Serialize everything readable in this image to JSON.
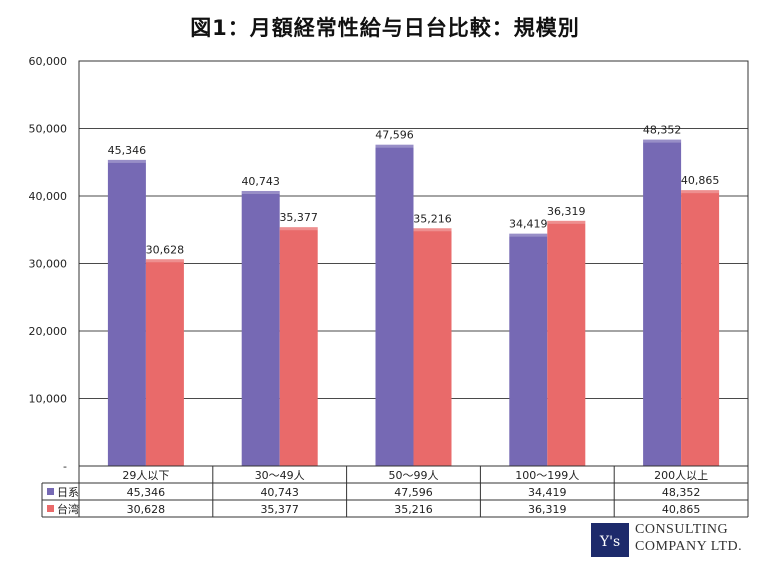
{
  "chart_data": {
    "type": "bar",
    "title": "図1：月額経常性給与日台比較：規模別",
    "categories": [
      "29人以下",
      "30〜49人",
      "50〜99人",
      "100〜199人",
      "200人以上"
    ],
    "series": [
      {
        "name": "日系",
        "color": "#7669b4",
        "values": [
          45346,
          40743,
          47596,
          34419,
          48352
        ],
        "labels": [
          "45,346",
          "40,743",
          "47,596",
          "34,419",
          "48,352"
        ]
      },
      {
        "name": "台湾",
        "color": "#e96a6a",
        "values": [
          30628,
          35377,
          35216,
          36319,
          40865
        ],
        "labels": [
          "30,628",
          "35,377",
          "35,216",
          "36,319",
          "40,865"
        ]
      }
    ],
    "ylim": [
      0,
      60000
    ],
    "yticks": [
      0,
      10000,
      20000,
      30000,
      40000,
      50000,
      60000
    ],
    "ytick_labels": [
      "-",
      "10,000",
      "20,000",
      "30,000",
      "40,000",
      "50,000",
      "60,000"
    ],
    "grid": true,
    "legend": "data-table"
  },
  "logo": {
    "mark": "Y's",
    "line1": "CONSULTING",
    "line2": "COMPANY LTD."
  }
}
